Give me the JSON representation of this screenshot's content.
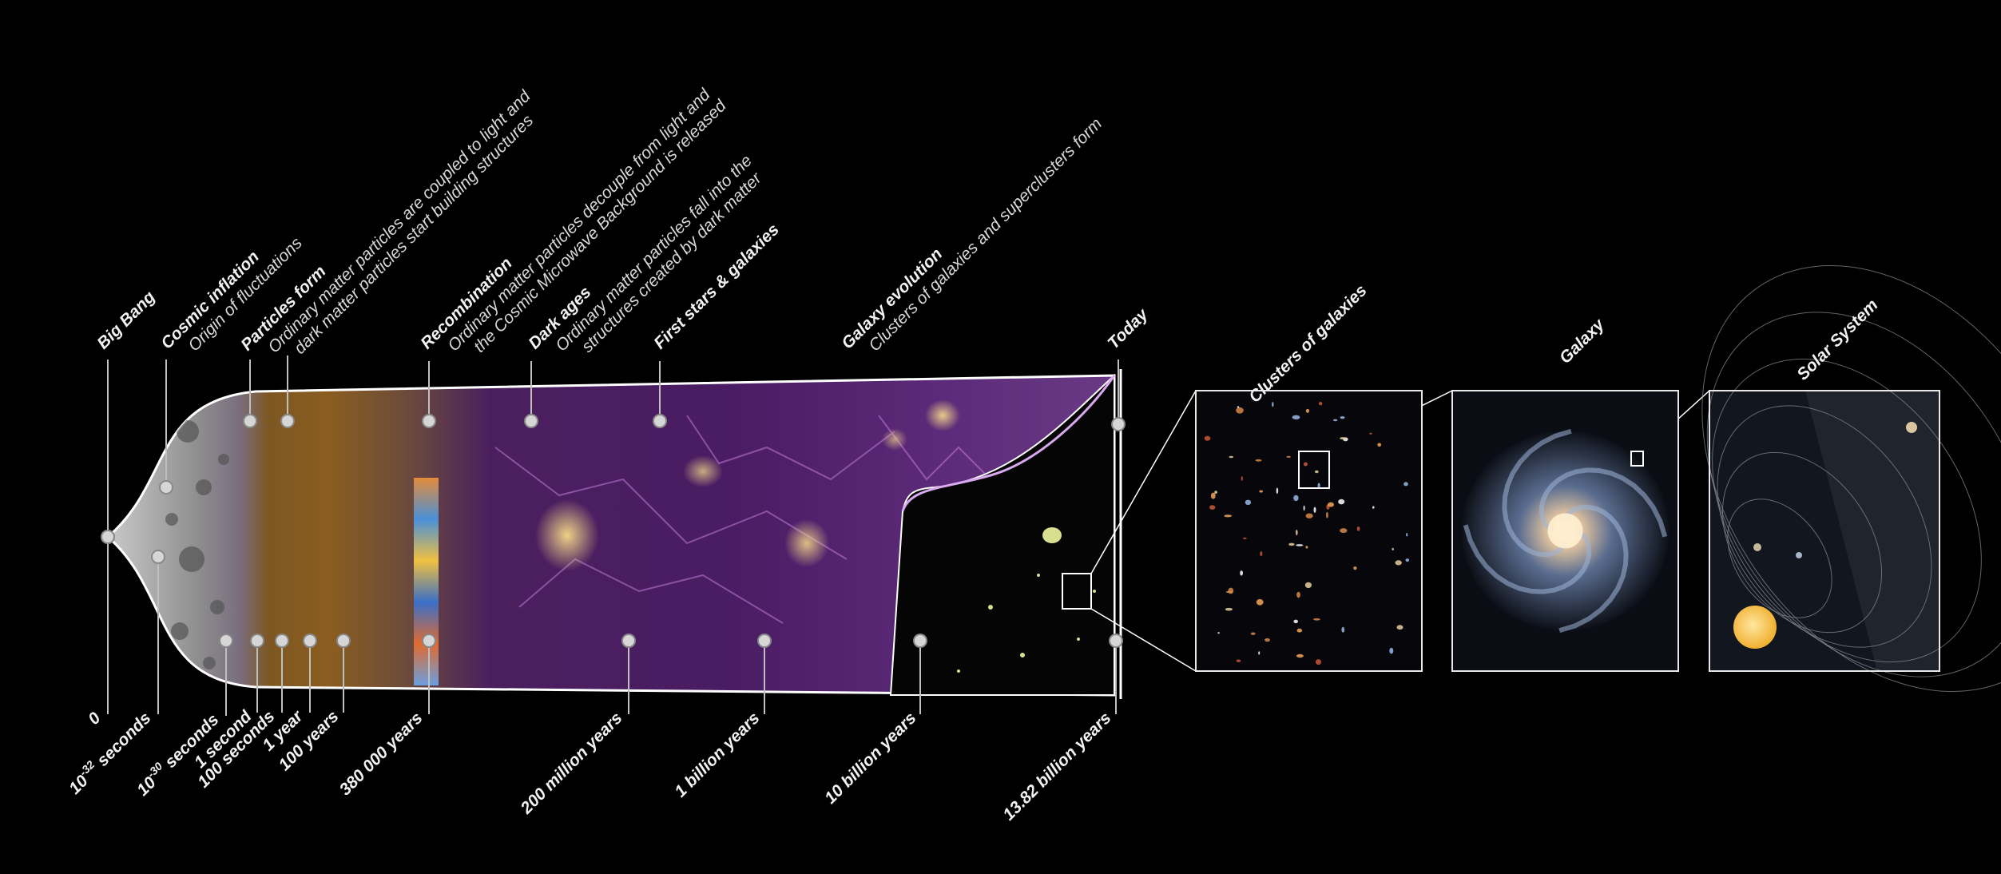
{
  "top_events": [
    {
      "id": "big-bang",
      "title": "Big Bang",
      "desc": []
    },
    {
      "id": "cosmic-inflation",
      "title": "Cosmic inflation",
      "desc": [
        "Origin of fluctuations"
      ]
    },
    {
      "id": "particles-form",
      "title": "Particles form",
      "desc": [
        "Ordinary matter particles are coupled to light and",
        "dark matter particles start building structures"
      ]
    },
    {
      "id": "recombination",
      "title": "Recombination",
      "desc": [
        "Ordinary matter particles decouple from light and",
        "the Cosmic Microwave Background is released"
      ]
    },
    {
      "id": "dark-ages",
      "title": "Dark ages",
      "desc": [
        "Ordinary  matter  particles  fall  into  the",
        "structures created by dark matter"
      ]
    },
    {
      "id": "first-stars",
      "title": "First stars & galaxies",
      "desc": []
    },
    {
      "id": "galaxy-evolution",
      "title": "Galaxy evolution",
      "desc": [
        "Clusters of galaxies and superclusters form"
      ]
    },
    {
      "id": "today",
      "title": "Today",
      "desc": []
    }
  ],
  "time_labels": [
    {
      "id": "zero",
      "text": "0"
    },
    {
      "id": "t-1e-32",
      "base": "10",
      "exp": "-32",
      "unit": " seconds"
    },
    {
      "id": "t-1e-30",
      "base": "10",
      "exp": "-30",
      "unit": " seconds"
    },
    {
      "id": "t-1s",
      "text": "1 second"
    },
    {
      "id": "t-100s",
      "text": "100 seconds"
    },
    {
      "id": "t-1y",
      "text": "1 year"
    },
    {
      "id": "t-100y",
      "text": "100 years"
    },
    {
      "id": "t-380k",
      "text": "380 000 years"
    },
    {
      "id": "t-200m",
      "text": "200 million years"
    },
    {
      "id": "t-1b",
      "text": "1 billion years"
    },
    {
      "id": "t-10b",
      "text": "10 billion years"
    },
    {
      "id": "t-13b",
      "text": "13.82 billion years"
    }
  ],
  "panels": [
    {
      "id": "clusters",
      "title": "Clusters of galaxies"
    },
    {
      "id": "galaxy",
      "title": "Galaxy"
    },
    {
      "id": "solar",
      "title": "Solar System"
    }
  ],
  "colors": {
    "background": "#000000",
    "early_universe": "#9a9a9a",
    "particle_era": "#8a5a1e",
    "dark_matter_web": "#5a1f7a",
    "structure_highlight": "#ffd86a",
    "marker": "#cfcfcf"
  }
}
